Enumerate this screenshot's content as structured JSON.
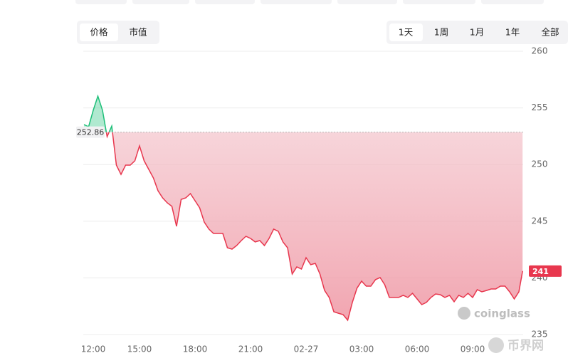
{
  "tabs": [
    "价格",
    "市值"
  ],
  "ranges": [
    "1天",
    "1周",
    "1月",
    "1年",
    "全部"
  ],
  "watermark": "coinglass",
  "watermark2": "币界网",
  "chart_data": {
    "type": "line",
    "x": [
      0,
      0.25,
      0.5,
      0.75,
      1,
      1.25,
      1.5,
      1.75,
      2,
      2.25,
      2.5,
      2.75,
      3,
      3.25,
      3.5,
      3.75,
      4,
      4.25,
      4.5,
      4.75,
      5,
      5.25,
      5.5,
      5.75,
      6,
      6.25,
      6.5,
      6.75,
      7,
      7.25,
      7.5,
      7.75,
      8,
      8.25,
      8.5,
      8.75,
      9,
      9.25,
      9.5,
      9.75,
      10,
      10.25,
      10.5,
      10.75,
      11,
      11.25,
      11.5,
      11.75,
      12,
      12.25,
      12.5,
      12.75,
      13,
      13.25,
      13.5,
      13.75,
      14,
      14.25,
      14.5,
      14.75,
      15,
      15.25,
      15.5,
      15.75,
      16,
      16.25,
      16.5,
      16.75,
      17,
      17.25,
      17.5,
      17.75,
      18,
      18.25,
      18.5,
      18.75,
      19,
      19.25,
      19.5,
      19.75,
      20,
      20.25,
      20.5,
      20.75,
      21,
      21.25,
      21.5,
      21.75,
      22,
      22.25,
      22.5,
      22.75,
      23,
      23.25,
      23.5,
      23.7
    ],
    "series": [
      {
        "color": "#e8374e",
        "up_color": "#1dbf78",
        "values": [
          253.53,
          253.34,
          254.79,
          256.04,
          254.79,
          252.46,
          253.4,
          249.95,
          249.13,
          249.95,
          249.95,
          250.33,
          251.65,
          250.33,
          249.57,
          248.82,
          247.69,
          247.06,
          246.62,
          246.31,
          244.55,
          246.93,
          247.06,
          247.44,
          246.81,
          246.18,
          244.92,
          244.3,
          243.92,
          243.92,
          243.92,
          242.66,
          242.54,
          242.85,
          243.29,
          243.67,
          243.48,
          243.17,
          243.29,
          242.85,
          243.48,
          244.3,
          244.11,
          243.17,
          242.66,
          240.34,
          240.97,
          240.78,
          241.78,
          241.16,
          241.28,
          240.34,
          238.89,
          238.27,
          237.01,
          236.88,
          236.76,
          236.26,
          237.83,
          239.08,
          239.71,
          239.27,
          239.27,
          239.84,
          240.03,
          239.4,
          238.27,
          238.27,
          238.27,
          238.46,
          238.27,
          238.64,
          238.14,
          237.64,
          237.83,
          238.27,
          238.58,
          238.52,
          238.27,
          238.46,
          237.89,
          238.46,
          238.27,
          238.64,
          238.27,
          238.96,
          238.77,
          238.89,
          239.02,
          239.02,
          239.27,
          239.27,
          238.77,
          238.14,
          238.77,
          240.6
        ]
      }
    ],
    "baseline": 252.86,
    "last_price": {
      "value": 240.6,
      "label": "241"
    },
    "xlim": [
      0,
      23.73
    ],
    "xticks": [
      {
        "value": 0,
        "label": "12:00"
      },
      {
        "value": 3,
        "label": "15:00"
      },
      {
        "value": 6,
        "label": "18:00"
      },
      {
        "value": 9,
        "label": "21:00"
      },
      {
        "value": 12,
        "label": "02-27"
      },
      {
        "value": 15,
        "label": "03:00"
      },
      {
        "value": 18,
        "label": "06:00"
      },
      {
        "value": 21,
        "label": "09:00"
      }
    ],
    "ylim": [
      235,
      260
    ],
    "yticks": [
      235,
      240,
      245,
      250,
      255,
      260
    ],
    "grid": true
  }
}
